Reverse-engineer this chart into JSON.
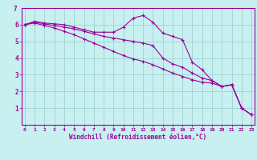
{
  "xlabel": "Windchill (Refroidissement éolien,°C)",
  "background_color": "#c8f0f0",
  "line_color": "#990099",
  "grid_color": "#99cccc",
  "hours": [
    0,
    1,
    2,
    3,
    4,
    5,
    6,
    7,
    8,
    9,
    10,
    11,
    12,
    13,
    14,
    15,
    16,
    17,
    18,
    19,
    20,
    21,
    22,
    23
  ],
  "line1": [
    6.0,
    6.2,
    6.1,
    6.05,
    6.0,
    5.85,
    5.7,
    5.55,
    5.55,
    5.55,
    5.85,
    6.4,
    6.55,
    6.15,
    5.5,
    5.3,
    5.1,
    3.75,
    3.3,
    2.65,
    2.3,
    2.4,
    1.0,
    0.6
  ],
  "line2": [
    6.0,
    6.15,
    6.05,
    5.95,
    5.85,
    5.75,
    5.6,
    5.45,
    5.3,
    5.2,
    5.1,
    5.0,
    4.9,
    4.75,
    4.0,
    3.65,
    3.45,
    3.1,
    2.8,
    2.65,
    2.3,
    2.4,
    1.0,
    0.6
  ],
  "line3": [
    6.0,
    6.1,
    5.95,
    5.8,
    5.6,
    5.4,
    5.15,
    4.9,
    4.65,
    4.4,
    4.15,
    3.95,
    3.8,
    3.6,
    3.35,
    3.1,
    2.9,
    2.7,
    2.55,
    2.5,
    2.3,
    2.4,
    1.0,
    0.6
  ],
  "ylim": [
    0,
    7
  ],
  "yticks": [
    1,
    2,
    3,
    4,
    5,
    6
  ],
  "ymax_label": "7",
  "xlim": [
    -0.3,
    23.3
  ]
}
